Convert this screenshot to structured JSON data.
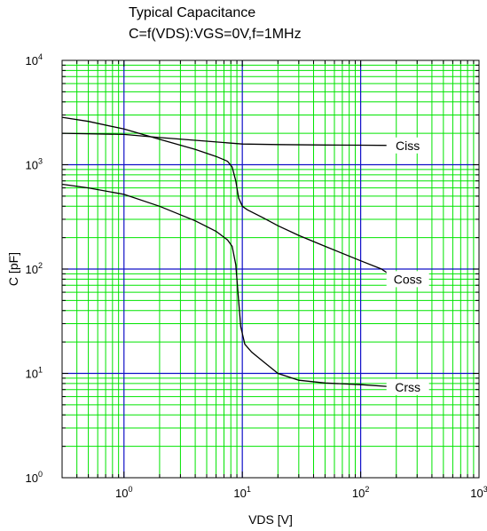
{
  "chart_data": {
    "type": "line",
    "title_lines": [
      "Typical Capacitance",
      "C=f(VDS):VGS=0V,f=1MHz"
    ],
    "xlabel": "VDS [V]",
    "ylabel": "C [pF]",
    "x_scale": "log",
    "y_scale": "log",
    "xlim": [
      0.3,
      1000
    ],
    "ylim": [
      1,
      10000
    ],
    "x_ticks": [
      {
        "base": "10",
        "exp": "0",
        "value": 1
      },
      {
        "base": "10",
        "exp": "1",
        "value": 10
      },
      {
        "base": "10",
        "exp": "2",
        "value": 100
      },
      {
        "base": "10",
        "exp": "3",
        "value": 1000
      }
    ],
    "y_ticks": [
      {
        "base": "10",
        "exp": "0",
        "value": 1
      },
      {
        "base": "10",
        "exp": "1",
        "value": 10
      },
      {
        "base": "10",
        "exp": "2",
        "value": 100
      },
      {
        "base": "10",
        "exp": "3",
        "value": 1000
      },
      {
        "base": "10",
        "exp": "4",
        "value": 10000
      }
    ],
    "grid": true,
    "grid_major_color": "#1010c8",
    "grid_minor_color": "#00e400",
    "series": [
      {
        "name": "Ciss",
        "label_at": 250,
        "points": [
          [
            0.3,
            2000
          ],
          [
            1,
            1950
          ],
          [
            2,
            1820
          ],
          [
            5,
            1680
          ],
          [
            10,
            1580
          ],
          [
            20,
            1560
          ],
          [
            50,
            1545
          ],
          [
            100,
            1540
          ],
          [
            200,
            1530
          ]
        ]
      },
      {
        "name": "Coss",
        "label_at": 250,
        "points": [
          [
            0.3,
            2850
          ],
          [
            0.5,
            2600
          ],
          [
            1,
            2200
          ],
          [
            2,
            1750
          ],
          [
            4,
            1400
          ],
          [
            6,
            1200
          ],
          [
            7.5,
            1080
          ],
          [
            8.2,
            950
          ],
          [
            8.8,
            700
          ],
          [
            9.3,
            480
          ],
          [
            10,
            400
          ],
          [
            11,
            370
          ],
          [
            15,
            310
          ],
          [
            20,
            260
          ],
          [
            30,
            210
          ],
          [
            50,
            165
          ],
          [
            100,
            120
          ],
          [
            150,
            100
          ],
          [
            200,
            80
          ]
        ]
      },
      {
        "name": "Crss",
        "label_at": 250,
        "points": [
          [
            0.3,
            650
          ],
          [
            0.5,
            600
          ],
          [
            1,
            520
          ],
          [
            2,
            400
          ],
          [
            4,
            290
          ],
          [
            6,
            230
          ],
          [
            7.5,
            190
          ],
          [
            8.2,
            165
          ],
          [
            8.8,
            110
          ],
          [
            9.3,
            50
          ],
          [
            9.7,
            28
          ],
          [
            10.5,
            19
          ],
          [
            12,
            16
          ],
          [
            15,
            13
          ],
          [
            20,
            10
          ],
          [
            30,
            8.6
          ],
          [
            50,
            8.1
          ],
          [
            100,
            7.8
          ],
          [
            200,
            7.4
          ]
        ]
      }
    ]
  }
}
